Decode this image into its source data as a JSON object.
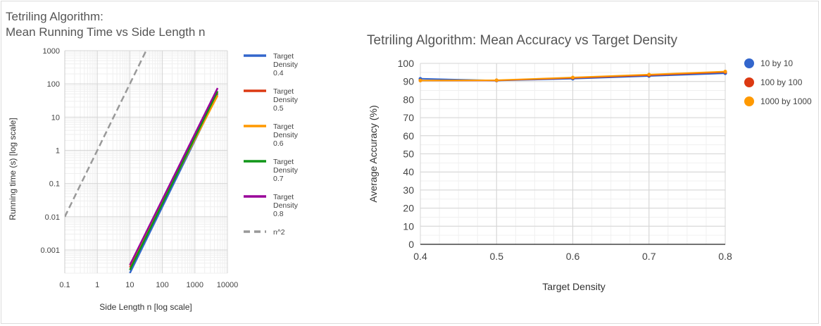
{
  "chart_data": [
    {
      "type": "line",
      "title_lines": [
        "Tetriling Algorithm:",
        "Mean Running Time vs Side Length n"
      ],
      "xlabel": "Side Length n [log scale]",
      "ylabel": "Running time (s) [log scale]",
      "x_scale": "log",
      "y_scale": "log",
      "xlim": [
        0.1,
        10000
      ],
      "ylim": [
        0.0002,
        1000
      ],
      "x_ticks": [
        {
          "value": 0.1,
          "label": "0.1"
        },
        {
          "value": 1,
          "label": "1"
        },
        {
          "value": 10,
          "label": "10"
        },
        {
          "value": 100,
          "label": "100"
        },
        {
          "value": 1000,
          "label": "1000"
        },
        {
          "value": 10000,
          "label": "10000"
        }
      ],
      "y_ticks": [
        {
          "value": 1000,
          "label": "1000"
        },
        {
          "value": 100,
          "label": "100"
        },
        {
          "value": 10,
          "label": "10"
        },
        {
          "value": 1,
          "label": "1"
        },
        {
          "value": 0.1,
          "label": "0.1"
        },
        {
          "value": 0.01,
          "label": "0.01"
        },
        {
          "value": 0.001,
          "label": "0.001"
        }
      ],
      "grid": true,
      "legend_position": "right",
      "series": [
        {
          "name_lines": [
            "Target",
            "Density",
            "0.4"
          ],
          "color": "#3366cc",
          "dashed": false,
          "x": [
            10,
            5000
          ],
          "y": [
            0.0002,
            50
          ]
        },
        {
          "name_lines": [
            "Target",
            "Density",
            "0.5"
          ],
          "color": "#dc3912",
          "dashed": false,
          "x": [
            10,
            5000
          ],
          "y": [
            0.0003,
            55
          ]
        },
        {
          "name_lines": [
            "Target",
            "Density",
            "0.6"
          ],
          "color": "#ff9900",
          "dashed": false,
          "x": [
            10,
            5000
          ],
          "y": [
            0.00035,
            45
          ]
        },
        {
          "name_lines": [
            "Target",
            "Density",
            "0.7"
          ],
          "color": "#109618",
          "dashed": false,
          "x": [
            10,
            5000
          ],
          "y": [
            0.00025,
            60
          ]
        },
        {
          "name_lines": [
            "Target",
            "Density",
            "0.8"
          ],
          "color": "#990099",
          "dashed": false,
          "x": [
            10,
            5000
          ],
          "y": [
            0.00035,
            75
          ]
        },
        {
          "name_lines": [
            "n^2"
          ],
          "color": "#999999",
          "dashed": true,
          "x": [
            0.1,
            31.6
          ],
          "y": [
            0.01,
            1000
          ]
        }
      ]
    },
    {
      "type": "line",
      "title_lines": [
        "Tetriling Algorithm: Mean Accuracy vs Target Density"
      ],
      "xlabel": "Target Density",
      "ylabel": "Average Accuracy (%)",
      "x_scale": "linear",
      "y_scale": "linear",
      "xlim": [
        0.4,
        0.8
      ],
      "ylim": [
        0,
        100
      ],
      "x_ticks": [
        {
          "value": 0.4,
          "label": "0.4"
        },
        {
          "value": 0.5,
          "label": "0.5"
        },
        {
          "value": 0.6,
          "label": "0.6"
        },
        {
          "value": 0.7,
          "label": "0.7"
        },
        {
          "value": 0.8,
          "label": "0.8"
        }
      ],
      "y_ticks": [
        {
          "value": 0,
          "label": "0"
        },
        {
          "value": 10,
          "label": "10"
        },
        {
          "value": 20,
          "label": "20"
        },
        {
          "value": 30,
          "label": "30"
        },
        {
          "value": 40,
          "label": "40"
        },
        {
          "value": 50,
          "label": "50"
        },
        {
          "value": 60,
          "label": "60"
        },
        {
          "value": 70,
          "label": "70"
        },
        {
          "value": 80,
          "label": "80"
        },
        {
          "value": 90,
          "label": "90"
        },
        {
          "value": 100,
          "label": "100"
        }
      ],
      "grid": true,
      "legend_position": "right",
      "series": [
        {
          "name_lines": [
            "10 by 10"
          ],
          "color": "#3366cc",
          "dashed": false,
          "x": [
            0.4,
            0.5,
            0.6,
            0.7,
            0.8
          ],
          "y": [
            91.5,
            90.5,
            91.5,
            93.0,
            94.5
          ]
        },
        {
          "name_lines": [
            "100 by 100"
          ],
          "color": "#dc3912",
          "dashed": false,
          "x": [
            0.4,
            0.5,
            0.6,
            0.7,
            0.8
          ],
          "y": [
            90.5,
            90.6,
            92.0,
            93.5,
            95.2
          ]
        },
        {
          "name_lines": [
            "1000 by 1000"
          ],
          "color": "#ff9900",
          "dashed": false,
          "x": [
            0.4,
            0.5,
            0.6,
            0.7,
            0.8
          ],
          "y": [
            90.5,
            90.7,
            92.2,
            93.8,
            95.5
          ]
        }
      ]
    }
  ]
}
